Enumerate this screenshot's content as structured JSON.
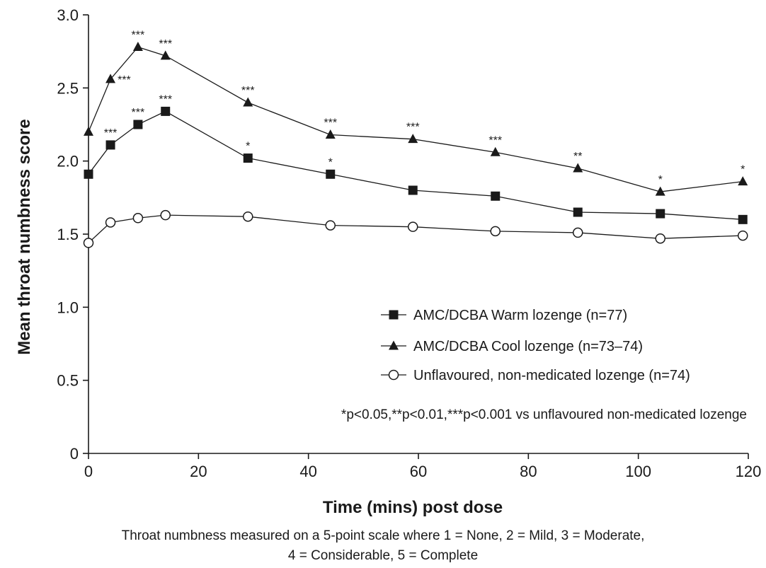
{
  "chart_data": {
    "type": "line",
    "xlabel": "Time (mins) post dose",
    "ylabel": "Mean throat numbness score",
    "xlim": [
      0,
      120
    ],
    "ylim": [
      0,
      3.0
    ],
    "xticks": [
      "0",
      "20",
      "40",
      "60",
      "80",
      "100",
      "120"
    ],
    "yticks": [
      "0",
      "0.5",
      "1.0",
      "1.5",
      "2.0",
      "2.5",
      "3.0"
    ],
    "grid": false,
    "legend_placement": "lower-right",
    "series": [
      {
        "name": "AMC/DCBA Warm lozenge (n=77)",
        "marker": "square",
        "x": [
          0,
          4,
          9,
          14,
          29,
          44,
          59,
          74,
          89,
          104,
          119
        ],
        "y": [
          1.91,
          2.11,
          2.25,
          2.34,
          2.02,
          1.91,
          1.8,
          1.76,
          1.65,
          1.64,
          1.6
        ],
        "significance": [
          "",
          "***",
          "***",
          "***",
          "*",
          "*",
          "",
          "",
          "",
          "",
          ""
        ]
      },
      {
        "name": "AMC/DCBA Cool lozenge (n=73–74)",
        "marker": "triangle",
        "x": [
          0,
          4,
          9,
          14,
          29,
          44,
          59,
          74,
          89,
          104,
          119
        ],
        "y": [
          2.2,
          2.56,
          2.78,
          2.72,
          2.4,
          2.18,
          2.15,
          2.06,
          1.95,
          1.79,
          1.86
        ],
        "significance": [
          "",
          "***",
          "***",
          "***",
          "***",
          "***",
          "***",
          "***",
          "**",
          "*",
          "*"
        ]
      },
      {
        "name": "Unflavoured, non-medicated lozenge (n=74)",
        "marker": "circle",
        "x": [
          0,
          4,
          9,
          14,
          29,
          44,
          59,
          74,
          89,
          104,
          119
        ],
        "y": [
          1.44,
          1.58,
          1.61,
          1.63,
          1.62,
          1.56,
          1.55,
          1.52,
          1.51,
          1.47,
          1.49
        ],
        "significance": [
          "",
          "",
          "",
          "",
          "",
          "",
          "",
          "",
          "",
          "",
          ""
        ]
      }
    ],
    "footnote": "*p<0.05,**p<0.01,***p<0.001 vs unflavoured non-medicated lozenge"
  },
  "caption": {
    "line1": "Throat numbness measured on a 5-point scale where 1 = None, 2 = Mild, 3 = Moderate,",
    "line2": "4 = Considerable, 5 = Complete"
  }
}
